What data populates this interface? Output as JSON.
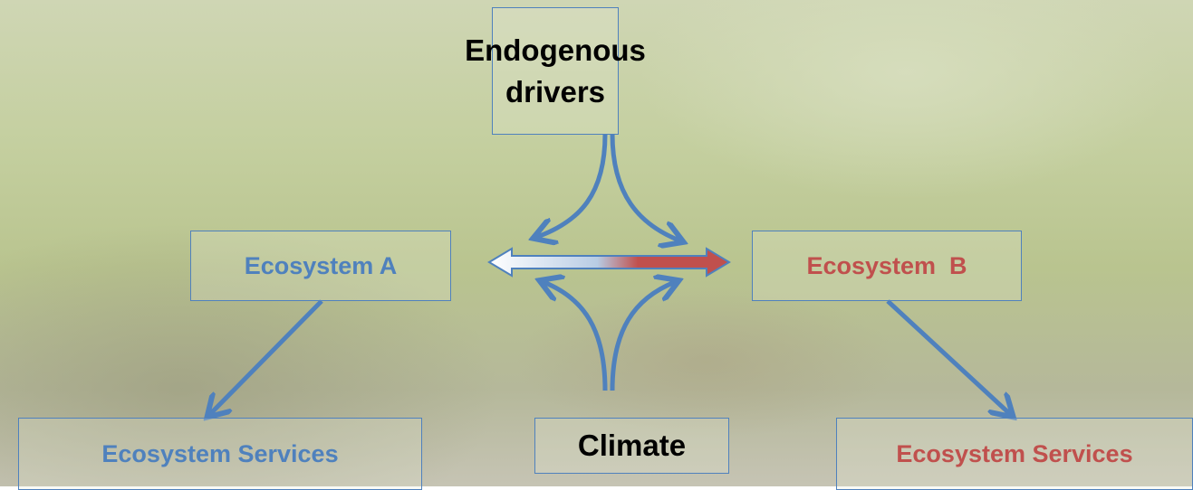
{
  "nodes": [
    {
      "label": "Endogenous drivers"
    },
    {
      "label": "Ecosystem A"
    },
    {
      "label": "Ecosystem  B"
    },
    {
      "label": "Ecosystem Services"
    },
    {
      "label": "Climate"
    },
    {
      "label": "Ecosystem Services"
    }
  ]
}
